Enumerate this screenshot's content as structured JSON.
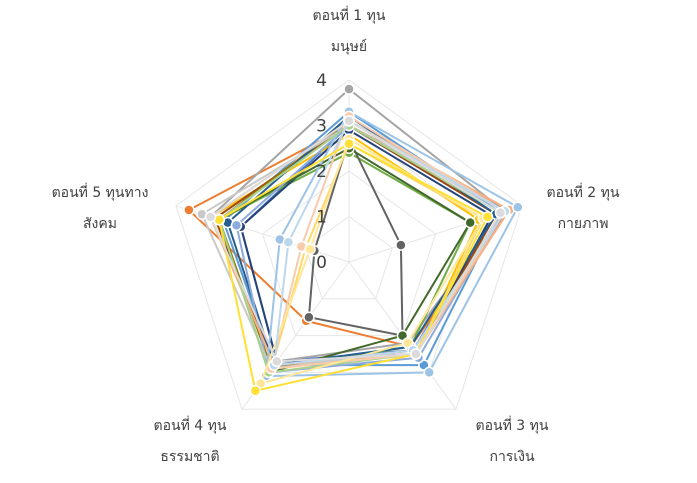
{
  "chart_data": {
    "type": "radar",
    "title": "",
    "categories": [
      [
        "ตอนที่ 1 ทุน",
        "มนุษย์"
      ],
      [
        "ตอนที่ 2 ทุน",
        "กายภาพ"
      ],
      [
        "ตอนที่ 3 ทุน",
        "การเงิน"
      ],
      [
        "ตอนที่ 4 ทุน",
        "ธรรมชาติ"
      ],
      [
        "ตอนที่ 5 ทุนทาง",
        "สังคม"
      ]
    ],
    "axis": {
      "min": 0,
      "max": 4,
      "ticks": [
        "0",
        "1",
        "2",
        "3",
        "4"
      ]
    },
    "grid": true,
    "legend": "none",
    "series": [
      {
        "color": "#4472C4",
        "values": [
          3.0,
          3.4,
          2.4,
          2.7,
          2.5
        ]
      },
      {
        "color": "#ED7D31",
        "values": [
          3.0,
          3.7,
          2.3,
          1.6,
          3.7
        ]
      },
      {
        "color": "#A5A5A5",
        "values": [
          3.8,
          3.6,
          2.2,
          2.7,
          3.2
        ]
      },
      {
        "color": "#FFC000",
        "values": [
          2.8,
          3.0,
          2.5,
          2.8,
          3.2
        ]
      },
      {
        "color": "#5B9BD5",
        "values": [
          3.3,
          3.5,
          2.8,
          2.8,
          2.9
        ]
      },
      {
        "color": "#70AD47",
        "values": [
          2.4,
          2.8,
          2.3,
          2.9,
          3.0
        ]
      },
      {
        "color": "#264478",
        "values": [
          2.9,
          3.3,
          2.5,
          2.7,
          2.5
        ]
      },
      {
        "color": "#9E480E",
        "values": [
          3.0,
          3.4,
          2.5,
          2.8,
          3.1
        ]
      },
      {
        "color": "#636363",
        "values": [
          2.7,
          1.2,
          2.0,
          1.5,
          0.8
        ]
      },
      {
        "color": "#997300",
        "values": [
          3.1,
          3.6,
          2.4,
          2.9,
          3.0
        ]
      },
      {
        "color": "#255E91",
        "values": [
          3.2,
          3.4,
          2.3,
          2.8,
          2.8
        ]
      },
      {
        "color": "#43682B",
        "values": [
          2.5,
          2.8,
          2.0,
          3.0,
          3.0
        ]
      },
      {
        "color": "#8FAADC",
        "values": [
          3.0,
          3.6,
          2.6,
          3.0,
          2.6
        ]
      },
      {
        "color": "#F4B183",
        "values": [
          3.1,
          3.7,
          2.5,
          2.8,
          3.2
        ]
      },
      {
        "color": "#C9C9C9",
        "values": [
          3.0,
          3.6,
          2.4,
          2.9,
          3.4
        ]
      },
      {
        "color": "#FFD966",
        "values": [
          2.6,
          3.1,
          2.5,
          2.9,
          1.0
        ]
      },
      {
        "color": "#9DC3E6",
        "values": [
          3.3,
          3.9,
          3.0,
          3.1,
          1.6
        ]
      },
      {
        "color": "#A9D18E",
        "values": [
          3.0,
          3.5,
          2.5,
          3.0,
          3.0
        ]
      },
      {
        "color": "#F8CBAD",
        "values": [
          3.2,
          3.6,
          2.5,
          2.9,
          1.1
        ]
      },
      {
        "color": "#FFE699",
        "values": [
          2.7,
          3.1,
          2.2,
          3.3,
          0.9
        ]
      },
      {
        "color": "#BDD7EE",
        "values": [
          3.1,
          3.6,
          2.4,
          2.8,
          1.4
        ]
      },
      {
        "color": "#FFE033",
        "values": [
          2.6,
          3.2,
          2.5,
          3.5,
          3.0
        ]
      },
      {
        "color": "#DBDBDB",
        "values": [
          3.1,
          3.5,
          2.5,
          2.7,
          3.2
        ]
      }
    ]
  }
}
